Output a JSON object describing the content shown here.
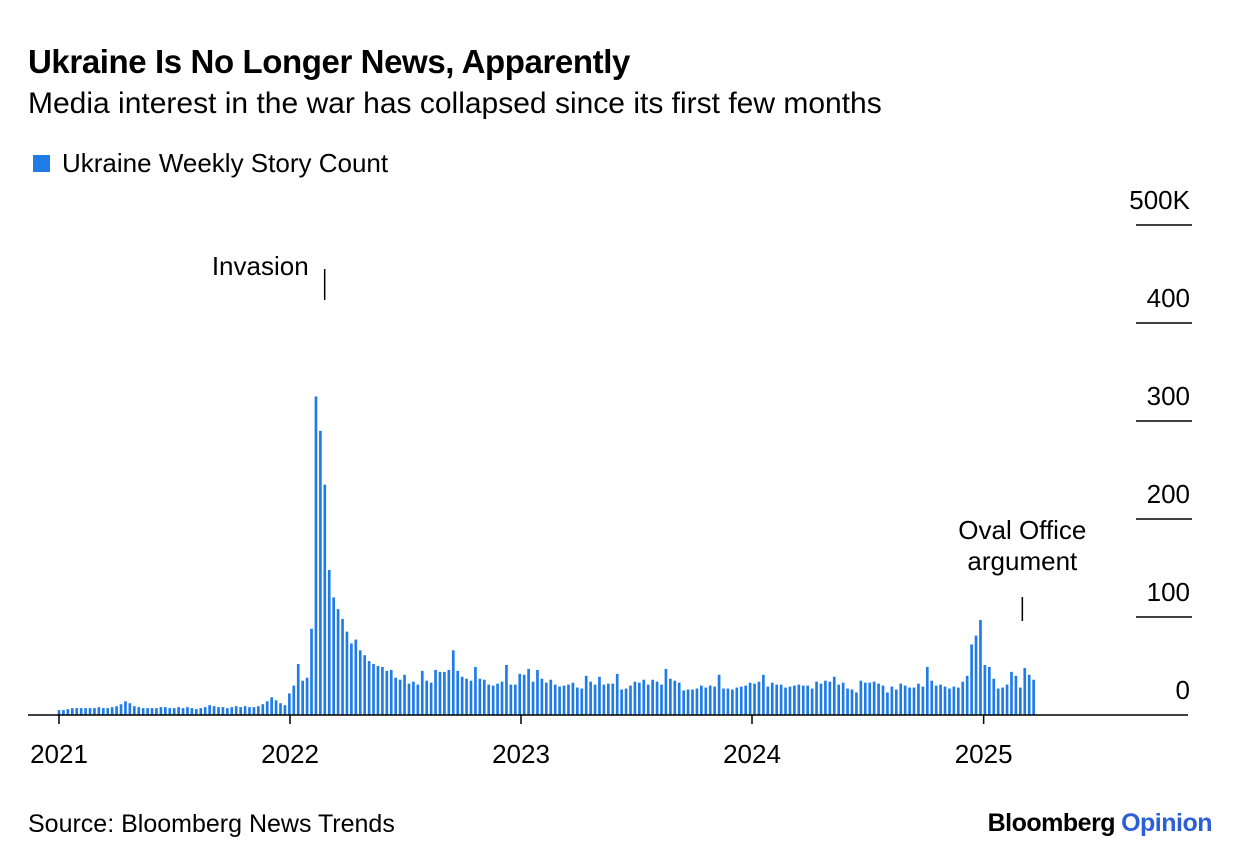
{
  "title": "Ukraine Is No Longer News, Apparently",
  "subtitle": "Media interest in the war has collapsed since its first few months",
  "source": "Source: Bloomberg News Trends",
  "brand": {
    "name": "Bloomberg",
    "accent": "Opinion",
    "accent_color": "#2b5fd9"
  },
  "colors": {
    "bar": "#1f7be8",
    "text": "#000000"
  },
  "chart_data": {
    "type": "bar",
    "xlabel": "",
    "ylabel": "",
    "ylim": [
      0,
      500
    ],
    "y_ticks": [
      0,
      100,
      200,
      300,
      400,
      500
    ],
    "y_tick_labels": [
      "0",
      "100",
      "200",
      "300",
      "400",
      "500K"
    ],
    "y_axis_position": "right",
    "x_range": [
      "2021-01-01",
      "2025-10-01"
    ],
    "x_ticks": [
      "2021-01-01",
      "2022-01-01",
      "2023-01-01",
      "2024-01-01",
      "2025-01-01"
    ],
    "x_tick_labels": [
      "2021",
      "2022",
      "2023",
      "2024",
      "2025"
    ],
    "grid": false,
    "legend_position": "top-left",
    "series": [
      {
        "name": "Ukraine Weekly Story Count",
        "color": "#1f7be8",
        "start_week": "2021-01-01",
        "interval_days": 7,
        "values": [
          5,
          5,
          6,
          7,
          7,
          7,
          7,
          7,
          7,
          8,
          7,
          7,
          8,
          9,
          11,
          14,
          12,
          9,
          8,
          7,
          7,
          7,
          7,
          8,
          8,
          7,
          7,
          8,
          7,
          8,
          7,
          6,
          7,
          8,
          10,
          9,
          8,
          8,
          7,
          8,
          9,
          8,
          9,
          8,
          8,
          9,
          11,
          14,
          18,
          15,
          12,
          10,
          22,
          30,
          52,
          35,
          38,
          88,
          325,
          290,
          235,
          148,
          120,
          108,
          98,
          85,
          73,
          77,
          66,
          61,
          55,
          52,
          50,
          49,
          45,
          46,
          38,
          36,
          41,
          32,
          34,
          31,
          45,
          35,
          33,
          46,
          44,
          44,
          46,
          66,
          45,
          39,
          37,
          35,
          49,
          37,
          36,
          31,
          30,
          32,
          34,
          51,
          31,
          31,
          42,
          41,
          47,
          34,
          46,
          37,
          33,
          36,
          31,
          29,
          30,
          31,
          33,
          28,
          27,
          40,
          34,
          31,
          39,
          31,
          32,
          32,
          42,
          26,
          27,
          30,
          34,
          33,
          36,
          31,
          36,
          34,
          31,
          47,
          37,
          35,
          33,
          25,
          26,
          26,
          27,
          30,
          28,
          30,
          29,
          41,
          27,
          27,
          26,
          28,
          29,
          30,
          33,
          32,
          34,
          41,
          29,
          33,
          31,
          31,
          28,
          29,
          30,
          31,
          30,
          30,
          27,
          34,
          32,
          35,
          34,
          39,
          31,
          33,
          27,
          26,
          23,
          35,
          33,
          33,
          34,
          32,
          30,
          23,
          29,
          26,
          32,
          30,
          28,
          28,
          32,
          29,
          49,
          35,
          30,
          31,
          29,
          27,
          29,
          28,
          34,
          40,
          72,
          81,
          97,
          51,
          49,
          37,
          27,
          28,
          31,
          44,
          40,
          28,
          48,
          41,
          36
        ]
      }
    ],
    "annotations": [
      {
        "text": "Invasion",
        "date": "2022-02-24"
      },
      {
        "lines": [
          "Oval Office",
          "argument"
        ],
        "date": "2025-02-28"
      }
    ]
  }
}
